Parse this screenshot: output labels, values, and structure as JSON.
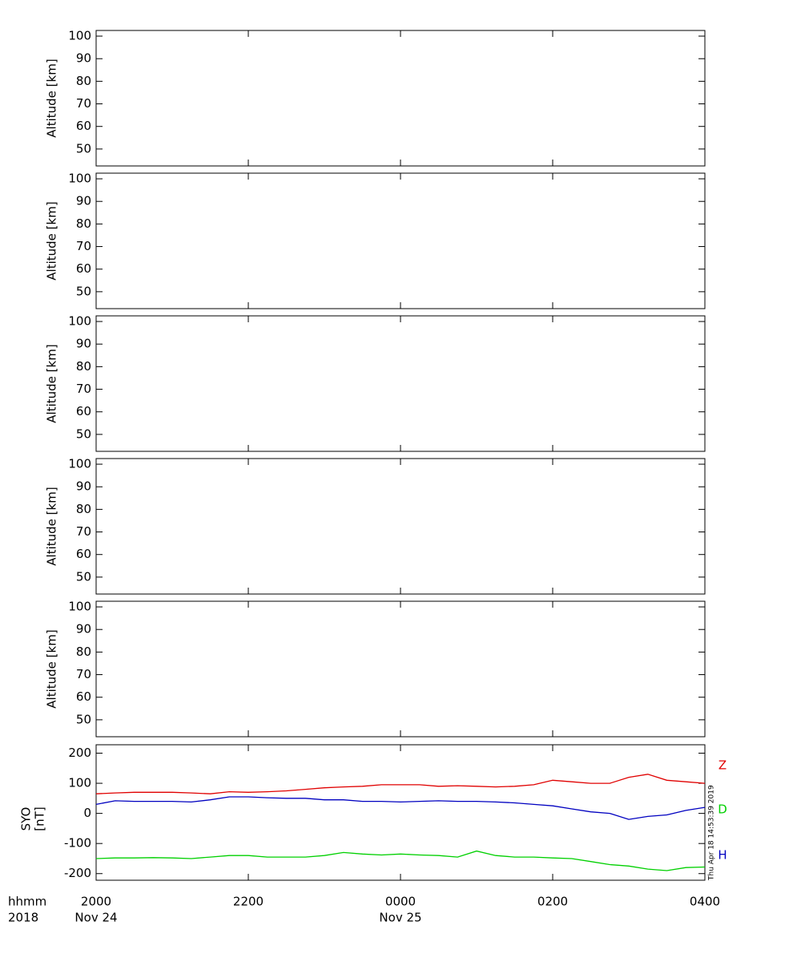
{
  "chart_data": [
    {
      "type": "line",
      "ylabel": "Altitude [km]",
      "ylim": [
        42.5,
        102.5
      ],
      "yticks": [
        50,
        60,
        70,
        80,
        90,
        100
      ],
      "xlim": [
        20,
        28
      ],
      "series": []
    },
    {
      "type": "line",
      "ylabel": "Altitude [km]",
      "ylim": [
        42.5,
        102.5
      ],
      "yticks": [
        50,
        60,
        70,
        80,
        90,
        100
      ],
      "xlim": [
        20,
        28
      ],
      "series": []
    },
    {
      "type": "line",
      "ylabel": "Altitude [km]",
      "ylim": [
        42.5,
        102.5
      ],
      "yticks": [
        50,
        60,
        70,
        80,
        90,
        100
      ],
      "xlim": [
        20,
        28
      ],
      "series": []
    },
    {
      "type": "line",
      "ylabel": "Altitude [km]",
      "ylim": [
        42.5,
        102.5
      ],
      "yticks": [
        50,
        60,
        70,
        80,
        90,
        100
      ],
      "xlim": [
        20,
        28
      ],
      "series": []
    },
    {
      "type": "line",
      "ylabel": "Altitude [km]",
      "ylim": [
        42.5,
        102.5
      ],
      "yticks": [
        50,
        60,
        70,
        80,
        90,
        100
      ],
      "xlim": [
        20,
        28
      ],
      "series": []
    },
    {
      "type": "line",
      "ylabel": [
        "SYO",
        "[nT]"
      ],
      "ylim": [
        -222,
        228
      ],
      "yticks": [
        -200,
        -100,
        0,
        100,
        200
      ],
      "xlim": [
        20,
        28
      ],
      "xticks": [
        {
          "value": 20,
          "label": "2000"
        },
        {
          "value": 22,
          "label": "2200"
        },
        {
          "value": 24,
          "label": "0000"
        },
        {
          "value": 26,
          "label": "0200"
        },
        {
          "value": 28,
          "label": "0400"
        }
      ],
      "date_labels": [
        {
          "value": 20,
          "label": "Nov 24"
        },
        {
          "value": 24,
          "label": "Nov 25"
        }
      ],
      "xlabel": [
        "hhmm",
        "2018"
      ],
      "x": [
        20,
        20.25,
        20.5,
        20.75,
        21,
        21.25,
        21.5,
        21.75,
        22,
        22.25,
        22.5,
        22.75,
        23,
        23.25,
        23.5,
        23.75,
        24,
        24.25,
        24.5,
        24.75,
        25,
        25.25,
        25.5,
        25.75,
        26,
        26.25,
        26.5,
        26.75,
        27,
        27.25,
        27.5,
        27.75,
        28
      ],
      "series": [
        {
          "name": "Z",
          "color": "#e00000",
          "values": [
            65,
            68,
            70,
            70,
            70,
            68,
            65,
            72,
            70,
            72,
            75,
            80,
            85,
            88,
            90,
            95,
            95,
            95,
            90,
            92,
            90,
            88,
            90,
            95,
            110,
            105,
            100,
            100,
            120,
            130,
            110,
            105,
            100
          ]
        },
        {
          "name": "D",
          "color": "#00d000",
          "values": [
            -150,
            -148,
            -148,
            -147,
            -148,
            -150,
            -145,
            -140,
            -140,
            -145,
            -145,
            -145,
            -140,
            -130,
            -135,
            -138,
            -135,
            -138,
            -140,
            -145,
            -125,
            -140,
            -145,
            -145,
            -148,
            -150,
            -160,
            -170,
            -175,
            -185,
            -190,
            -180,
            -178
          ]
        },
        {
          "name": "H",
          "color": "#0000c0",
          "values": [
            30,
            42,
            40,
            40,
            40,
            38,
            45,
            55,
            55,
            52,
            50,
            50,
            45,
            45,
            40,
            40,
            38,
            40,
            42,
            40,
            40,
            38,
            35,
            30,
            25,
            15,
            5,
            0,
            -20,
            -10,
            -5,
            10,
            20
          ]
        }
      ],
      "timestamp": "Thu Apr 18 14:53:39 2019"
    }
  ]
}
